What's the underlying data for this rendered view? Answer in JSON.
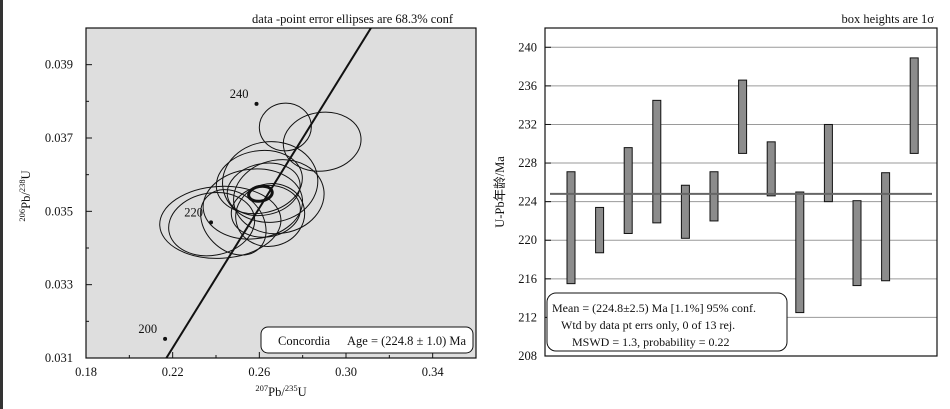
{
  "colors": {
    "plot_bg": "#dedede",
    "ink": "#111111",
    "box_fill": "#8c8c8c",
    "grid": "#9a9a9a",
    "mean_line": "#666666"
  },
  "chart_data": [
    {
      "type": "scatter",
      "subtype": "concordia-diagram",
      "title": "data -point error ellipses are 68.3% conf",
      "xlabel": {
        "sup1": "207",
        "base1": "Pb/",
        "sup2": "235",
        "base2": "U"
      },
      "ylabel": {
        "sup1": "206",
        "base1": "Pb/",
        "sup2": "238",
        "base2": "U"
      },
      "xlim": [
        0.18,
        0.36
      ],
      "ylim": [
        0.031,
        0.04
      ],
      "xticks": [
        0.18,
        0.22,
        0.26,
        0.3,
        0.34
      ],
      "xtick_labels": [
        "0.18",
        "0.22",
        "0.26",
        "0.30",
        "0.34"
      ],
      "yticks": [
        0.031,
        0.033,
        0.035,
        0.037,
        0.039
      ],
      "ytick_labels": [
        "0.031",
        "0.033",
        "0.035",
        "0.037",
        "0.039"
      ],
      "grid": false,
      "concordia_curve": [
        {
          "x": 0.215,
          "y": 0.0308
        },
        {
          "x": 0.322,
          "y": 0.041
        }
      ],
      "age_labels": [
        {
          "text": "200",
          "x": 0.2165,
          "y": 0.03152
        },
        {
          "text": "220",
          "x": 0.2377,
          "y": 0.0347
        },
        {
          "text": "240",
          "x": 0.2587,
          "y": 0.03793
        }
      ],
      "ellipses": [
        {
          "cx": 0.242,
          "cy": 0.0347,
          "rx": 0.028,
          "ry": 0.00098,
          "rot": 3
        },
        {
          "cx": 0.238,
          "cy": 0.03465,
          "rx": 0.02,
          "ry": 0.00085,
          "rot": 10
        },
        {
          "cx": 0.257,
          "cy": 0.0352,
          "rx": 0.023,
          "ry": 0.00095,
          "rot": 6
        },
        {
          "cx": 0.265,
          "cy": 0.0358,
          "rx": 0.022,
          "ry": 0.0011,
          "rot": 4
        },
        {
          "cx": 0.289,
          "cy": 0.0369,
          "rx": 0.018,
          "ry": 0.0008,
          "rot": 8
        },
        {
          "cx": 0.272,
          "cy": 0.0373,
          "rx": 0.012,
          "ry": 0.00065,
          "rot": 4
        },
        {
          "cx": 0.26,
          "cy": 0.0358,
          "rx": 0.02,
          "ry": 0.00085,
          "rot": 10
        },
        {
          "cx": 0.248,
          "cy": 0.0347,
          "rx": 0.013,
          "ry": 0.001,
          "rot": 45
        },
        {
          "cx": 0.262,
          "cy": 0.0356,
          "rx": 0.017,
          "ry": 0.0007,
          "rot": 12
        },
        {
          "cx": 0.263,
          "cy": 0.035,
          "rx": 0.016,
          "ry": 0.0007,
          "rot": 8
        },
        {
          "cx": 0.269,
          "cy": 0.0354,
          "rx": 0.021,
          "ry": 0.001,
          "rot": 10
        },
        {
          "cx": 0.265,
          "cy": 0.0349,
          "rx": 0.016,
          "ry": 0.00085,
          "rot": 15
        }
      ],
      "mean_ellipse": {
        "cx": 0.2605,
        "cy": 0.03548,
        "rx": 0.0055,
        "ry": 0.0002,
        "rot": 10
      },
      "annotation": {
        "name": "Concordia",
        "age_text": "Age = (224.8 ± 1.0) Ma"
      }
    },
    {
      "type": "bar",
      "subtype": "age-box-plot",
      "title": "box heights are 1σ",
      "ylabel": "U-Pb年龄/Ma",
      "ylim": [
        208,
        242
      ],
      "yticks": [
        208,
        212,
        216,
        220,
        224,
        228,
        232,
        236,
        240
      ],
      "ytick_labels": [
        "208",
        "212",
        "216",
        "220",
        "224",
        "228",
        "232",
        "236",
        "240"
      ],
      "grid": "horizontal",
      "mean": 224.8,
      "boxes": [
        {
          "low": 215.5,
          "high": 227.1
        },
        {
          "low": 218.7,
          "high": 223.4
        },
        {
          "low": 220.7,
          "high": 229.6
        },
        {
          "low": 221.8,
          "high": 234.5
        },
        {
          "low": 220.2,
          "high": 225.7
        },
        {
          "low": 222.0,
          "high": 227.1
        },
        {
          "low": 229.0,
          "high": 236.6
        },
        {
          "low": 224.6,
          "high": 230.2
        },
        {
          "low": 212.5,
          "high": 225.0
        },
        {
          "low": 224.0,
          "high": 232.0
        },
        {
          "low": 215.3,
          "high": 224.1
        },
        {
          "low": 215.8,
          "high": 227.0
        },
        {
          "low": 229.0,
          "high": 238.9
        }
      ],
      "stats": {
        "line1": "Mean = (224.8±2.5) Ma  [1.1%]  95% conf.",
        "line2": "Wtd by data pt errs only, 0 of 13 rej.",
        "line3": "MSWD = 1.3, probability = 0.22"
      }
    }
  ]
}
